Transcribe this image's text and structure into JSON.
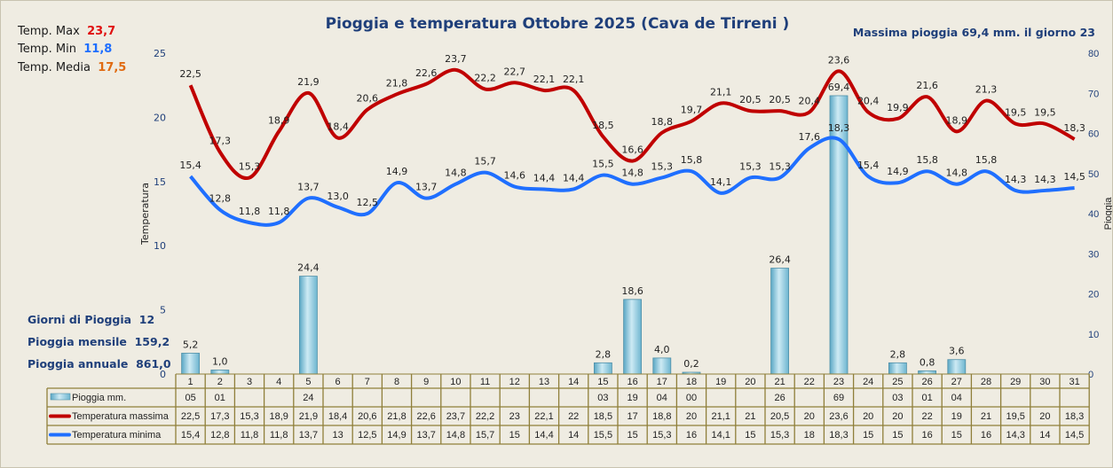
{
  "colors": {
    "max": "#c00000",
    "min": "#1f6fff",
    "rain": "#9fd3e6",
    "title": "#1f3f7a",
    "grid": "#8f7f3a"
  },
  "chart_data": {
    "type": "bar+line",
    "title": "Pioggia e temperatura Ottobre 2025 (Cava de Tirreni )",
    "subtitle": "Massima pioggia  69,4 mm. il giorno 23",
    "ylabel_left": "Temperatura",
    "ylabel_right": "Pioggia",
    "ylim_left": [
      0,
      25
    ],
    "yticks_left": [
      "0",
      "5",
      "10",
      "15",
      "20",
      "25"
    ],
    "ylim_right": [
      0,
      80
    ],
    "yticks_right": [
      "0",
      "10",
      "20",
      "30",
      "40",
      "50",
      "60",
      "70",
      "80"
    ],
    "categories": [
      "1",
      "2",
      "3",
      "4",
      "5",
      "6",
      "7",
      "8",
      "9",
      "10",
      "11",
      "12",
      "13",
      "14",
      "15",
      "16",
      "17",
      "18",
      "19",
      "20",
      "21",
      "22",
      "23",
      "24",
      "25",
      "26",
      "27",
      "28",
      "29",
      "30",
      "31"
    ],
    "series": [
      {
        "name": "Pioggia mm.",
        "type": "bar",
        "axis": "right",
        "values": [
          5.2,
          1.0,
          0,
          0,
          24.4,
          0,
          0,
          0,
          0,
          0,
          0,
          0,
          0,
          0,
          2.8,
          18.6,
          4.0,
          0.2,
          0,
          0,
          26.4,
          0,
          69.4,
          0,
          2.8,
          0.8,
          3.6,
          0,
          0,
          0,
          0
        ],
        "labels": [
          "5,2",
          "1,0",
          "",
          "",
          "24,4",
          "",
          "",
          "",
          "",
          "",
          "",
          "",
          "",
          "",
          "2,8",
          "18,6",
          "4,0",
          "0,2",
          "",
          "",
          "26,4",
          "",
          "69,4",
          "",
          "2,8",
          "0,8",
          "3,6",
          "",
          "",
          "",
          ""
        ]
      },
      {
        "name": "Temperatura massima",
        "type": "line",
        "axis": "left",
        "values": [
          22.5,
          17.3,
          15.3,
          18.9,
          21.9,
          18.4,
          20.6,
          21.8,
          22.6,
          23.7,
          22.2,
          22.7,
          22.1,
          22.1,
          18.5,
          16.6,
          18.8,
          19.7,
          21.1,
          20.5,
          20.5,
          20.4,
          23.6,
          20.4,
          19.9,
          21.6,
          18.9,
          21.3,
          19.5,
          19.5,
          18.3
        ],
        "labels": [
          "22,5",
          "17,3",
          "15,3",
          "18,9",
          "21,9",
          "18,4",
          "20,6",
          "21,8",
          "22,6",
          "23,7",
          "22,2",
          "22,7",
          "22,1",
          "22,1",
          "18,5",
          "16,6",
          "18,8",
          "19,7",
          "21,1",
          "20,5",
          "20,5",
          "20,4",
          "23,6",
          "20,4",
          "19,9",
          "21,6",
          "18,9",
          "21,3",
          "19,5",
          "19,5",
          "18,3"
        ]
      },
      {
        "name": "Temperatura minima",
        "type": "line",
        "axis": "left",
        "values": [
          15.4,
          12.8,
          11.8,
          11.8,
          13.7,
          13.0,
          12.5,
          14.9,
          13.7,
          14.8,
          15.7,
          14.6,
          14.4,
          14.4,
          15.5,
          14.8,
          15.3,
          15.8,
          14.1,
          15.3,
          15.3,
          17.6,
          18.3,
          15.4,
          14.9,
          15.8,
          14.8,
          15.8,
          14.3,
          14.3,
          14.5
        ],
        "labels": [
          "15,4",
          "12,8",
          "11,8",
          "11,8",
          "13,7",
          "13,0",
          "12,5",
          "14,9",
          "13,7",
          "14,8",
          "15,7",
          "14,6",
          "14,4",
          "14,4",
          "15,5",
          "14,8",
          "15,3",
          "15,8",
          "14,1",
          "15,3",
          "15,3",
          "17,6",
          "18,3",
          "15,4",
          "14,9",
          "15,8",
          "14,8",
          "15,8",
          "14,3",
          "14,3",
          "14,5"
        ]
      }
    ],
    "table": {
      "rows": [
        {
          "label": "Pioggia mm.",
          "cells": [
            "05",
            "01",
            "",
            "",
            "24",
            "",
            "",
            "",
            "",
            "",
            "",
            "",
            "",
            "",
            "03",
            "19",
            "04",
            "00",
            "",
            "",
            "26",
            "",
            "69",
            "",
            "03",
            "01",
            "04",
            "",
            "",
            "",
            ""
          ]
        },
        {
          "label": "Temperatura massima",
          "cells": [
            "22,5",
            "17,3",
            "15,3",
            "18,9",
            "21,9",
            "18,4",
            "20,6",
            "21,8",
            "22,6",
            "23,7",
            "22,2",
            "23",
            "22,1",
            "22",
            "18,5",
            "17",
            "18,8",
            "20",
            "21,1",
            "21",
            "20,5",
            "20",
            "23,6",
            "20",
            "20",
            "22",
            "19",
            "21",
            "19,5",
            "20",
            "18,3"
          ]
        },
        {
          "label": "Temperatura minima",
          "cells": [
            "15,4",
            "12,8",
            "11,8",
            "11,8",
            "13,7",
            "13",
            "12,5",
            "14,9",
            "13,7",
            "14,8",
            "15,7",
            "15",
            "14,4",
            "14",
            "15,5",
            "15",
            "15,3",
            "16",
            "14,1",
            "15",
            "15,3",
            "18",
            "18,3",
            "15",
            "15",
            "16",
            "15",
            "16",
            "14,3",
            "14",
            "14,5"
          ]
        }
      ]
    }
  },
  "stats": {
    "tmax_label": "Temp. Max",
    "tmax": "23,7",
    "tmin_label": "Temp. Min",
    "tmin": "11,8",
    "tmed_label": "Temp. Media",
    "tmed": "17,5",
    "giorni_label": "Giorni di Pioggia",
    "giorni": "12",
    "mensile_label": "Pioggia mensile",
    "mensile": "159,2",
    "annuale_label": "Pioggia annuale",
    "annuale": "861,0"
  }
}
